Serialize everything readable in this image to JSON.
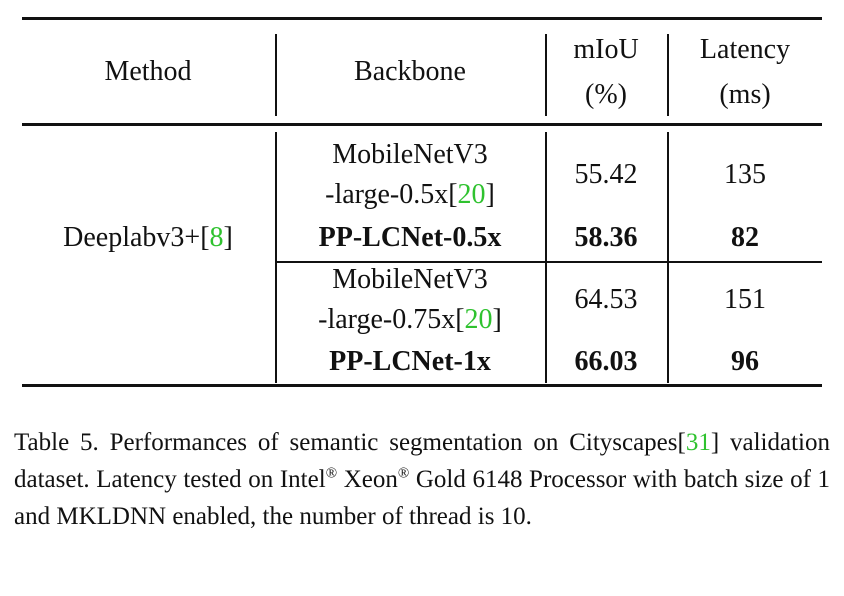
{
  "table": {
    "header": [
      [
        "Method"
      ],
      [
        "Backbone"
      ],
      [
        "mIoU",
        "(%)"
      ],
      [
        "Latency",
        "(ms)"
      ]
    ],
    "method": [
      "Deeplabv3+[",
      {
        "cite": "8"
      },
      "]"
    ],
    "rows": [
      {
        "backbone": [
          [
            "MobileNetV3"
          ],
          [
            "-large-0.5x[",
            {
              "cite": "20"
            },
            "]"
          ]
        ],
        "miou": "55.42",
        "latency": "135",
        "bold": false
      },
      {
        "backbone": [
          [
            "PP-LCNet-0.5x"
          ]
        ],
        "miou": "58.36",
        "latency": "82",
        "bold": true
      },
      {
        "backbone": [
          [
            "MobileNetV3"
          ],
          [
            "-large-0.75x[",
            {
              "cite": "20"
            },
            "]"
          ]
        ],
        "miou": "64.53",
        "latency": "151",
        "bold": false
      },
      {
        "backbone": [
          [
            "PP-LCNet-1x"
          ]
        ],
        "miou": "66.03",
        "latency": "96",
        "bold": true
      }
    ]
  },
  "caption": [
    "Table 5. Performances of semantic segmentation on Cityscapes[",
    {
      "cite": "31"
    },
    "] validation dataset. Latency tested on Intel",
    {
      "sup": "®"
    },
    " Xeon",
    {
      "sup": "®"
    },
    " Gold 6148 Processor with batch size of 1 and MKLDNN enabled, the number of thread is 10."
  ]
}
